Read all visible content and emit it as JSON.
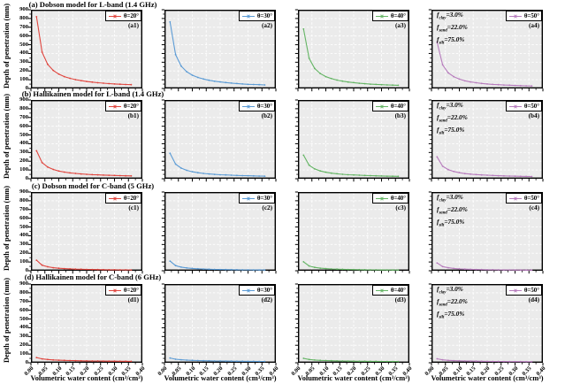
{
  "figure": {
    "y_axis_label": "Depth of penetration (mm)",
    "x_axis_label": "Volumetric water content (cm³/cm³)",
    "y_ticks": [
      "0",
      "100",
      "200",
      "300",
      "400",
      "500",
      "600",
      "700",
      "800",
      "900"
    ],
    "x_ticks": [
      "0.00",
      "0.05",
      "0.10",
      "0.15",
      "0.20",
      "0.25",
      "0.30",
      "0.35",
      "0.40"
    ],
    "plot_bg_color": "#ebebeb",
    "grid_color": "#ffffff",
    "annotation_lines": [
      {
        "f": "f",
        "sub": "clay",
        "val": "=3.0%"
      },
      {
        "f": "f",
        "sub": "sand",
        "val": "=22.0%"
      },
      {
        "f": "f",
        "sub": "silt",
        "val": "=75.0%"
      }
    ]
  },
  "chart_data": [
    {
      "type": "line",
      "title": "(a) Dobson model for L-band (1.4 GHz)",
      "xlabel": "Volumetric water content (cm³/cm³)",
      "ylabel": "Depth of penetration (mm)",
      "xlim": [
        0,
        0.4
      ],
      "ylim": [
        0,
        900
      ],
      "grid": true,
      "legend_position": "upper right",
      "x": [
        0.02,
        0.04,
        0.06,
        0.08,
        0.1,
        0.12,
        0.14,
        0.16,
        0.18,
        0.2,
        0.22,
        0.24,
        0.26,
        0.28,
        0.3,
        0.32,
        0.34,
        0.36
      ],
      "series": [
        {
          "name": "θ=20°",
          "tag": "(a1)",
          "color": "#e0453e",
          "values": [
            820,
            415,
            276,
            206,
            164,
            136,
            116,
            101,
            90,
            80,
            73,
            66,
            61,
            56,
            52,
            49,
            46,
            43
          ]
        },
        {
          "name": "θ=30°",
          "tag": "(a2)",
          "color": "#5b9bd5",
          "values": [
            760,
            386,
            256,
            191,
            152,
            126,
            108,
            94,
            83,
            75,
            68,
            62,
            57,
            52,
            48,
            45,
            43,
            40
          ]
        },
        {
          "name": "θ=40°",
          "tag": "(a3)",
          "color": "#65b565",
          "values": [
            680,
            345,
            229,
            171,
            136,
            113,
            96,
            84,
            74,
            67,
            60,
            55,
            50,
            47,
            43,
            40,
            38,
            36
          ]
        },
        {
          "name": "θ=50°",
          "tag": "(a4)",
          "color": "#b77cbd",
          "values": [
            530,
            270,
            179,
            134,
            107,
            88,
            75,
            66,
            58,
            52,
            47,
            43,
            39,
            37,
            34,
            32,
            30,
            28
          ]
        }
      ]
    },
    {
      "type": "line",
      "title": "(b) Hallikainen model for L-band (1.4 GHz)",
      "xlabel": "Volumetric water content (cm³/cm³)",
      "ylabel": "Depth of penetration (mm)",
      "xlim": [
        0,
        0.4
      ],
      "ylim": [
        0,
        900
      ],
      "grid": true,
      "legend_position": "upper right",
      "x": [
        0.02,
        0.04,
        0.06,
        0.08,
        0.1,
        0.12,
        0.14,
        0.16,
        0.18,
        0.2,
        0.22,
        0.24,
        0.26,
        0.28,
        0.3,
        0.32,
        0.34,
        0.36
      ],
      "series": [
        {
          "name": "θ=20°",
          "tag": "(b1)",
          "color": "#e0453e",
          "values": [
            320,
            184,
            133,
            106,
            88,
            76,
            67,
            61,
            55,
            51,
            47,
            44,
            41,
            39,
            37,
            35,
            33,
            32
          ]
        },
        {
          "name": "θ=30°",
          "tag": "(b2)",
          "color": "#5b9bd5",
          "values": [
            291,
            167,
            121,
            96,
            80,
            69,
            61,
            55,
            50,
            46,
            43,
            40,
            37,
            35,
            34,
            32,
            30,
            29
          ]
        },
        {
          "name": "θ=40°",
          "tag": "(b3)",
          "color": "#65b565",
          "values": [
            269,
            155,
            112,
            89,
            74,
            64,
            57,
            51,
            46,
            43,
            40,
            37,
            35,
            33,
            31,
            29,
            28,
            27
          ]
        },
        {
          "name": "θ=50°",
          "tag": "(b4)",
          "color": "#b77cbd",
          "values": [
            250,
            143,
            104,
            83,
            69,
            59,
            53,
            48,
            43,
            40,
            37,
            34,
            32,
            30,
            29,
            27,
            26,
            25
          ]
        }
      ]
    },
    {
      "type": "line",
      "title": "(c) Dobson model for C-band (5 GHz)",
      "xlabel": "Volumetric water content (cm³/cm³)",
      "ylabel": "Depth of penetration (mm)",
      "xlim": [
        0,
        0.4
      ],
      "ylim": [
        0,
        900
      ],
      "grid": true,
      "legend_position": "upper right",
      "x": [
        0.02,
        0.04,
        0.06,
        0.08,
        0.1,
        0.12,
        0.14,
        0.16,
        0.18,
        0.2,
        0.22,
        0.24,
        0.26,
        0.28,
        0.3,
        0.32,
        0.34,
        0.36
      ],
      "series": [
        {
          "name": "θ=20°",
          "tag": "(c1)",
          "color": "#e0453e",
          "values": [
            120,
            64,
            45,
            34,
            28,
            24,
            21,
            18,
            17,
            15,
            14,
            13,
            12,
            11,
            11,
            10,
            10,
            9
          ]
        },
        {
          "name": "θ=30°",
          "tag": "(c2)",
          "color": "#5b9bd5",
          "values": [
            110,
            59,
            41,
            32,
            26,
            22,
            19,
            17,
            15,
            14,
            13,
            12,
            11,
            10,
            10,
            9,
            9,
            8
          ]
        },
        {
          "name": "θ=40°",
          "tag": "(c3)",
          "color": "#65b565",
          "values": [
            102,
            55,
            38,
            29,
            24,
            20,
            18,
            16,
            14,
            13,
            12,
            11,
            10,
            10,
            9,
            9,
            8,
            8
          ]
        },
        {
          "name": "θ=50°",
          "tag": "(c4)",
          "color": "#b77cbd",
          "values": [
            90,
            48,
            34,
            26,
            21,
            18,
            16,
            14,
            13,
            11,
            11,
            10,
            9,
            9,
            8,
            8,
            7,
            7
          ]
        }
      ]
    },
    {
      "type": "line",
      "title": "(d) Hallikainen model for C-band (6 GHz)",
      "xlabel": "Volumetric water content (cm³/cm³)",
      "ylabel": "Depth of penetration (mm)",
      "xlim": [
        0,
        0.4
      ],
      "ylim": [
        0,
        900
      ],
      "grid": true,
      "legend_position": "upper right",
      "x": [
        0.02,
        0.04,
        0.06,
        0.08,
        0.1,
        0.12,
        0.14,
        0.16,
        0.18,
        0.2,
        0.22,
        0.24,
        0.26,
        0.28,
        0.3,
        0.32,
        0.34,
        0.36
      ],
      "series": [
        {
          "name": "θ=20°",
          "tag": "(d1)",
          "color": "#e0453e",
          "values": [
            60,
            44,
            37,
            32,
            29,
            27,
            25,
            24,
            22,
            21,
            20,
            20,
            19,
            18,
            18,
            17,
            17,
            16
          ]
        },
        {
          "name": "θ=30°",
          "tag": "(d2)",
          "color": "#5b9bd5",
          "values": [
            55,
            40,
            34,
            30,
            27,
            25,
            23,
            22,
            20,
            20,
            19,
            18,
            17,
            17,
            16,
            16,
            15,
            15
          ]
        },
        {
          "name": "θ=40°",
          "tag": "(d3)",
          "color": "#65b565",
          "values": [
            51,
            37,
            31,
            27,
            25,
            23,
            21,
            20,
            19,
            18,
            17,
            17,
            16,
            16,
            15,
            15,
            14,
            14
          ]
        },
        {
          "name": "θ=50°",
          "tag": "(d4)",
          "color": "#b77cbd",
          "values": [
            45,
            33,
            27,
            24,
            22,
            20,
            19,
            18,
            17,
            16,
            15,
            15,
            14,
            13,
            13,
            13,
            12,
            12
          ]
        }
      ]
    }
  ]
}
